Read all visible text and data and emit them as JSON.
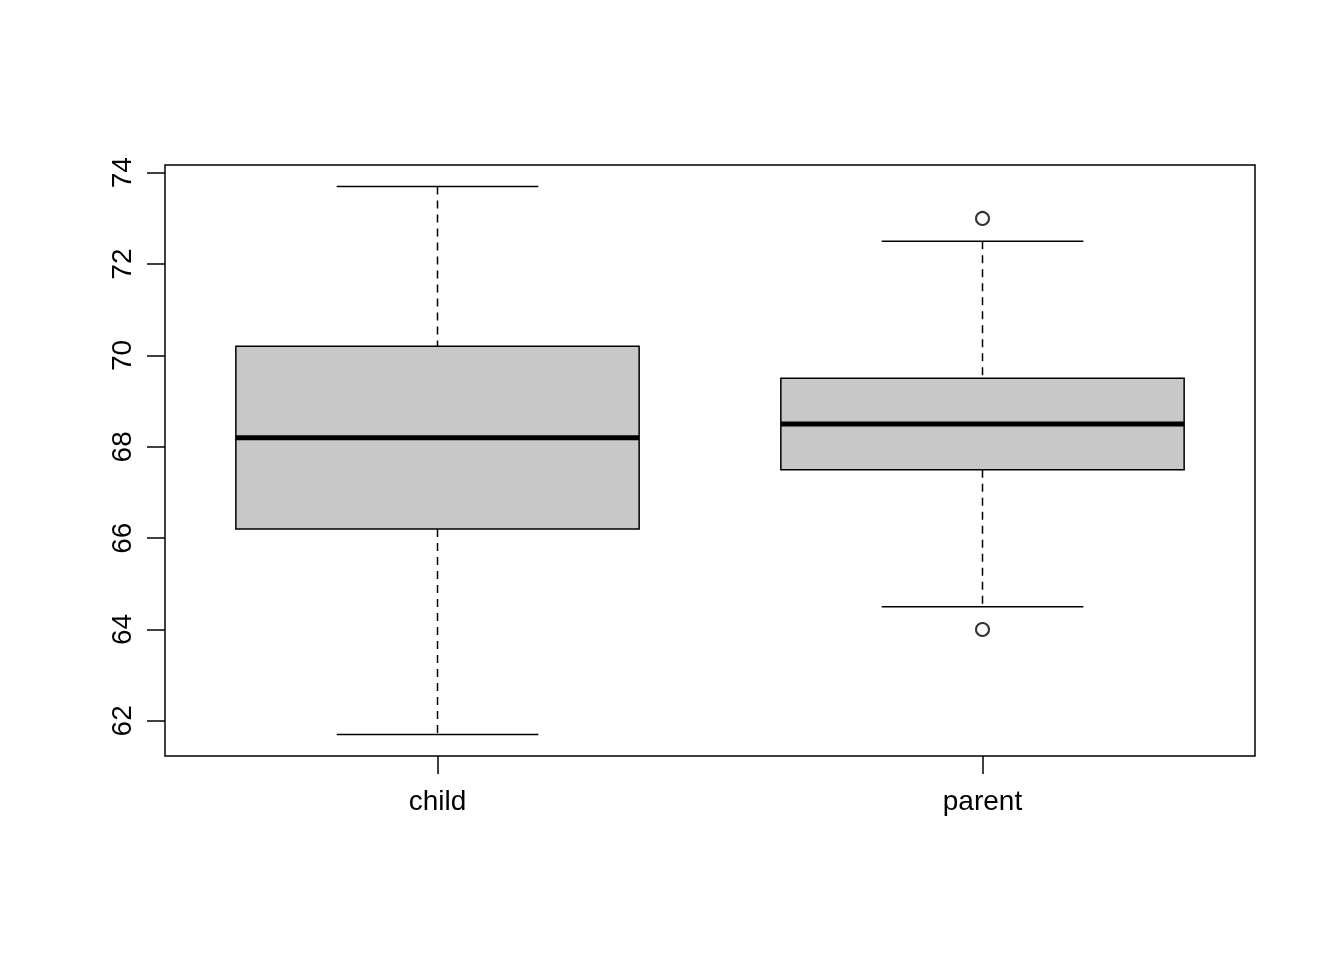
{
  "chart_data": {
    "type": "box",
    "categories": [
      "child",
      "parent"
    ],
    "color": "#c8c8c8",
    "marker": "circle",
    "boxes": [
      {
        "low": 61.7,
        "q1": 66.2,
        "median": 68.2,
        "q3": 70.2,
        "high": 73.7
      },
      {
        "low": 64.5,
        "q1": 67.5,
        "median": 68.5,
        "q3": 69.5,
        "high": 72.5,
        "outliers": [
          73,
          64
        ]
      }
    ],
    "ylim": [
      61.23,
      74.17
    ],
    "yticks": [
      62,
      64,
      66,
      68,
      70,
      72,
      74
    ]
  }
}
